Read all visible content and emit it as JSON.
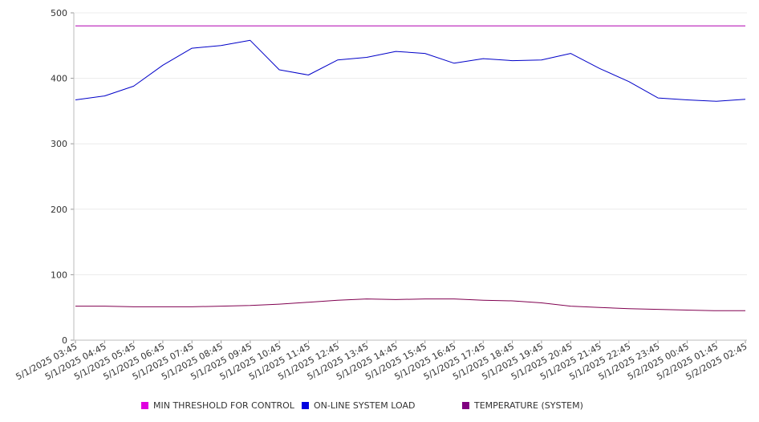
{
  "chart_data": {
    "type": "line",
    "title": "",
    "xlabel": "",
    "ylabel": "",
    "ylim": [
      0,
      500
    ],
    "yticks": [
      0,
      100,
      200,
      300,
      400,
      500
    ],
    "grid": true,
    "legend_position": "bottom",
    "x": [
      "5/1/2025 03:45",
      "5/1/2025 04:45",
      "5/1/2025 05:45",
      "5/1/2025 06:45",
      "5/1/2025 07:45",
      "5/1/2025 08:45",
      "5/1/2025 09:45",
      "5/1/2025 10:45",
      "5/1/2025 11:45",
      "5/1/2025 12:45",
      "5/1/2025 13:45",
      "5/1/2025 14:45",
      "5/1/2025 15:45",
      "5/1/2025 16:45",
      "5/1/2025 17:45",
      "5/1/2025 18:45",
      "5/1/2025 19:45",
      "5/1/2025 20:45",
      "5/1/2025 21:45",
      "5/1/2025 22:45",
      "5/1/2025 23:45",
      "5/2/2025 00:45",
      "5/2/2025 01:45",
      "5/2/2025 02:45"
    ],
    "series": [
      {
        "name": "MIN THRESHOLD FOR CONTROL",
        "color": "#e000e0",
        "line_color": "#b000b0",
        "values": [
          480,
          480,
          480,
          480,
          480,
          480,
          480,
          480,
          480,
          480,
          480,
          480,
          480,
          480,
          480,
          480,
          480,
          480,
          480,
          480,
          480,
          480,
          480,
          480
        ]
      },
      {
        "name": "ON-LINE SYSTEM LOAD",
        "color": "#0000e0",
        "line_color": "#0000c8",
        "values": [
          367,
          373,
          388,
          420,
          446,
          450,
          458,
          413,
          405,
          428,
          432,
          441,
          438,
          423,
          430,
          427,
          428,
          438,
          415,
          395,
          370,
          367,
          365,
          368
        ]
      },
      {
        "name": "TEMPERATURE (SYSTEM)",
        "color": "#800080",
        "line_color": "#800050",
        "values": [
          52,
          52,
          51,
          51,
          51,
          52,
          53,
          55,
          58,
          61,
          63,
          62,
          63,
          63,
          61,
          60,
          57,
          52,
          50,
          48,
          47,
          46,
          45,
          45
        ]
      }
    ]
  }
}
